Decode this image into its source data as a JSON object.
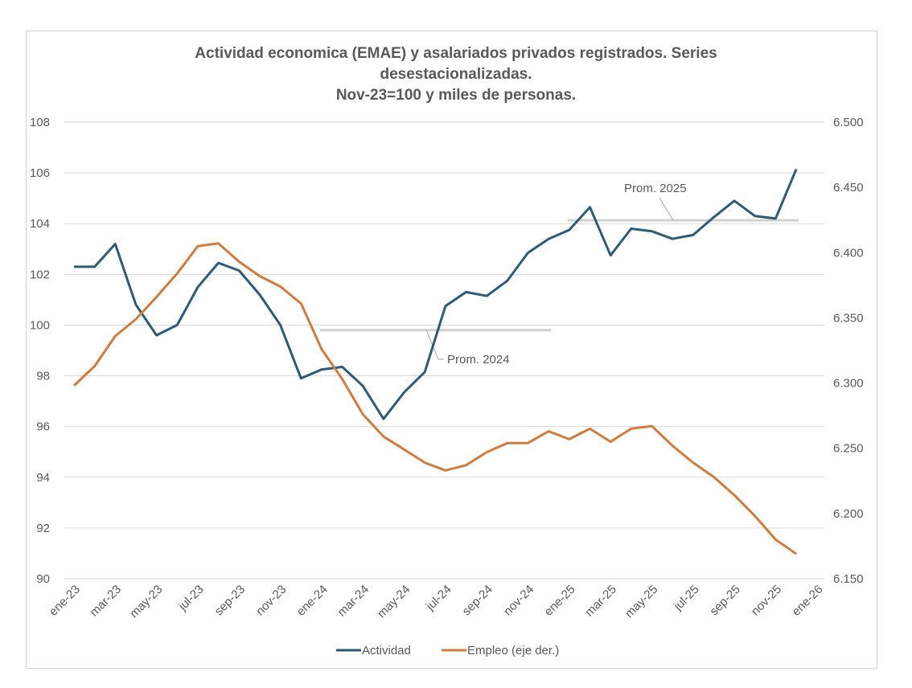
{
  "chart_data": {
    "type": "line",
    "title": [
      "Actividad economica (EMAE) y asalariados privados registrados. Series",
      "desestacionalizadas.",
      "Nov-23=100 y miles de personas."
    ],
    "x": [
      "ene-23",
      "feb-23",
      "mar-23",
      "abr-23",
      "may-23",
      "jun-23",
      "jul-23",
      "ago-23",
      "sep-23",
      "oct-23",
      "nov-23",
      "dic-23",
      "ene-24",
      "feb-24",
      "mar-24",
      "abr-24",
      "may-24",
      "jun-24",
      "jul-24",
      "ago-24",
      "sep-24",
      "oct-24",
      "nov-24",
      "dic-24",
      "ene-25",
      "feb-25",
      "mar-25",
      "abr-25",
      "may-25",
      "jun-25",
      "jul-25",
      "ago-25",
      "sep-25",
      "oct-25",
      "nov-25",
      "dic-25"
    ],
    "x_tick_labels": [
      "ene-23",
      "mar-23",
      "may-23",
      "jul-23",
      "sep-23",
      "nov-23",
      "ene-24",
      "mar-24",
      "may-24",
      "jul-24",
      "sep-24",
      "nov-24",
      "ene-25",
      "mar-25",
      "may-25",
      "jul-25",
      "sep-25",
      "nov-25",
      "ene-26"
    ],
    "y_left": {
      "range": [
        90,
        108
      ],
      "ticks": [
        "90",
        "92",
        "94",
        "96",
        "98",
        "100",
        "102",
        "104",
        "106",
        "108"
      ]
    },
    "y_right": {
      "range": [
        6.15,
        6.5
      ],
      "ticks": [
        "6.150",
        "6.200",
        "6.250",
        "6.300",
        "6.350",
        "6.400",
        "6.450",
        "6.500"
      ]
    },
    "grid": true,
    "legend_position": "bottom",
    "series": [
      {
        "name": "Actividad",
        "axis": "left",
        "color": "#2e5b76",
        "values": [
          102.3,
          102.3,
          103.2,
          100.8,
          99.6,
          100.0,
          101.5,
          102.45,
          102.15,
          101.2,
          100.0,
          97.9,
          98.25,
          98.35,
          97.6,
          96.3,
          97.35,
          98.15,
          100.75,
          101.3,
          101.15,
          101.75,
          102.85,
          103.4,
          103.75,
          104.65,
          102.75,
          103.8,
          103.7,
          103.4,
          103.55,
          104.25,
          104.9,
          104.3,
          104.2,
          106.15
        ]
      },
      {
        "name": "Empleo (eje der.)",
        "axis": "right",
        "color": "#d27b3f",
        "values": [
          6.298,
          6.313,
          6.336,
          6.349,
          6.366,
          6.384,
          6.405,
          6.407,
          6.393,
          6.382,
          6.374,
          6.361,
          6.326,
          6.303,
          6.276,
          6.259,
          6.249,
          6.239,
          6.233,
          6.237,
          6.247,
          6.254,
          6.254,
          6.263,
          6.257,
          6.265,
          6.255,
          6.265,
          6.267,
          6.252,
          6.239,
          6.228,
          6.214,
          6.198,
          6.18,
          6.169
        ]
      }
    ],
    "annotations": [
      {
        "label": "Prom. 2024",
        "value": 99.8,
        "from": "ene-24",
        "to": "dic-24"
      },
      {
        "label": "Prom. 2025",
        "value": 104.13,
        "from": "ene-25",
        "to": "dic-25"
      }
    ],
    "annotation_color": "#d0d0d0"
  }
}
